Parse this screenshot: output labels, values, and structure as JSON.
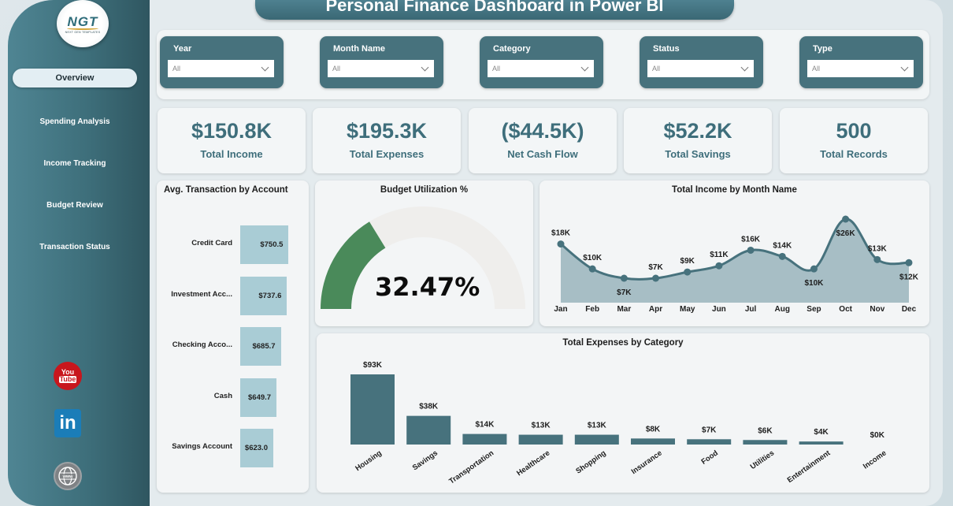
{
  "app": {
    "title": "Personal Finance Dashboard in Power BI",
    "logo": {
      "text": "NGT",
      "subtitle": "NEXT GEN TEMPLATES"
    }
  },
  "sidebar": {
    "items": [
      {
        "label": "Overview",
        "active": true
      },
      {
        "label": "Spending Analysis",
        "active": false
      },
      {
        "label": "Income Tracking",
        "active": false
      },
      {
        "label": "Budget Review",
        "active": false
      },
      {
        "label": "Transaction Status",
        "active": false
      }
    ],
    "social": {
      "youtube_top": "You",
      "youtube_bottom": "Tube",
      "linkedin": "in",
      "website": "www"
    }
  },
  "slicers": [
    {
      "label": "Year",
      "value": "All"
    },
    {
      "label": "Month Name",
      "value": "All"
    },
    {
      "label": "Category",
      "value": "All"
    },
    {
      "label": "Status",
      "value": "All"
    },
    {
      "label": "Type",
      "value": "All"
    }
  ],
  "kpis": [
    {
      "value": "$150.8K",
      "label": "Total Income"
    },
    {
      "value": "$195.3K",
      "label": "Total Expenses"
    },
    {
      "value": "($44.5K)",
      "label": "Net Cash Flow"
    },
    {
      "value": "$52.2K",
      "label": "Total Savings"
    },
    {
      "value": "500",
      "label": "Total Records"
    }
  ],
  "colors": {
    "accent": "#47727d",
    "bar_light": "#a9ccd5",
    "gauge_fill": "#4a8a5a",
    "area_fill": "#a7bec5",
    "line": "#47727d"
  },
  "chart_data": [
    {
      "type": "bar",
      "title": "Avg. Transaction by Account",
      "orientation": "horizontal",
      "categories": [
        "Credit Card",
        "Investment Acc...",
        "Checking Acco...",
        "Cash",
        "Savings Account"
      ],
      "values": [
        750.5,
        737.6,
        685.7,
        649.7,
        623.0
      ],
      "data_labels": [
        "$750.5",
        "$737.6",
        "$685.7",
        "$649.7",
        "$623.0"
      ]
    },
    {
      "type": "gauge",
      "title": "Budget Utilization %",
      "value": 32.47,
      "value_label": "32.47%",
      "min": 0,
      "max": 100
    },
    {
      "type": "area",
      "title": "Total Income by Month Name",
      "categories": [
        "Jan",
        "Feb",
        "Mar",
        "Apr",
        "May",
        "Jun",
        "Jul",
        "Aug",
        "Sep",
        "Oct",
        "Nov",
        "Dec"
      ],
      "values": [
        18,
        10,
        7,
        7,
        9,
        11,
        16,
        14,
        10,
        26,
        13,
        12
      ],
      "data_labels": [
        "$18K",
        "$10K",
        "$7K",
        "$7K",
        "$9K",
        "$11K",
        "$16K",
        "$14K",
        "$10K",
        "$26K",
        "$13K",
        "$12K"
      ],
      "unit": "K"
    },
    {
      "type": "bar",
      "title": "Total Expenses by Category",
      "categories": [
        "Housing",
        "Savings",
        "Transportation",
        "Healthcare",
        "Shopping",
        "Insurance",
        "Food",
        "Utilities",
        "Entertainment",
        "Income"
      ],
      "values": [
        93,
        38,
        14,
        13,
        13,
        8,
        7,
        6,
        4,
        0
      ],
      "data_labels": [
        "$93K",
        "$38K",
        "$14K",
        "$13K",
        "$13K",
        "$8K",
        "$7K",
        "$6K",
        "$4K",
        "$0K"
      ],
      "unit": "K"
    }
  ]
}
